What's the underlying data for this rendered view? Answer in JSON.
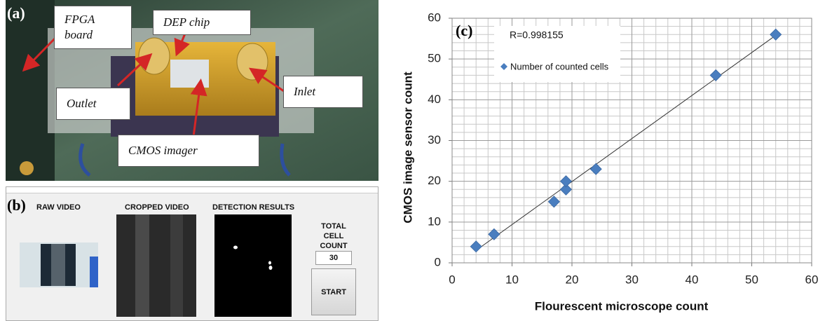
{
  "panel_a": {
    "label": "(a)",
    "fpga": "FPGA board",
    "dep": "DEP chip",
    "outlet": "Outlet",
    "inlet": "Inlet",
    "cmos": "CMOS imager"
  },
  "panel_b": {
    "label": "(b)",
    "raw": "RAW VIDEO",
    "cropped": "CROPPED VIDEO",
    "detection": "DETECTION RESULTS",
    "total": "TOTAL CELL COUNT",
    "count": 30,
    "start": "START"
  },
  "chart_data": {
    "type": "scatter",
    "panel_label": "(c)",
    "annotation": "R=0.998155",
    "xlabel": "Flourescent microscope count",
    "ylabel": "CMOS image sensor count",
    "x": [
      4,
      7,
      17,
      19,
      19,
      24,
      44,
      54
    ],
    "series": [
      {
        "name": "Number of counted cells",
        "color": "#4a7ebf",
        "values": [
          4,
          7,
          15,
          18,
          20,
          23,
          46,
          56
        ]
      }
    ],
    "xlim": [
      0,
      60
    ],
    "ylim": [
      0,
      60
    ],
    "xticks": [
      0,
      10,
      20,
      30,
      40,
      50,
      60
    ],
    "yticks": [
      0,
      10,
      20,
      30,
      40,
      50,
      60
    ],
    "grid": true,
    "trendline": true
  }
}
